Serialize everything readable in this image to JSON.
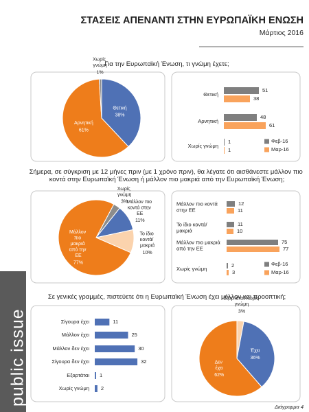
{
  "header": {
    "title": "ΣΤΑΣΕΙΣ ΑΠΕΝΑΝΤΙ ΣΤΗΝ ΕΥΡΩΠΑΪΚΗ ΕΝΩΣΗ",
    "date": "Μάρτιος 2016"
  },
  "brand": "public issue",
  "footer": "Διάγραμμα 4",
  "chart_data": [
    {
      "type": "pie",
      "title": "Για την Ευρωπαϊκή Ένωση, τι γνώμη έχετε;",
      "categories": [
        "Θετική",
        "Αρνητική",
        "Χωρίς γνώμη"
      ],
      "values": [
        38,
        61,
        1
      ],
      "value_labels": [
        "38%",
        "61%",
        "1%"
      ],
      "colors": [
        "#4f71b5",
        "#ee7d1b",
        "#8c8c8c"
      ]
    },
    {
      "type": "bar",
      "orientation": "horizontal",
      "categories": [
        "Θετική",
        "Αρνητική",
        "Χωρίς γνώμη"
      ],
      "series": [
        {
          "name": "Φεβ-16",
          "color": "#7f7f7f",
          "values": [
            51,
            48,
            1
          ]
        },
        {
          "name": "Μαρ-16",
          "color": "#f9a35c",
          "values": [
            38,
            61,
            1
          ]
        }
      ],
      "xlim": [
        0,
        100
      ],
      "legend": "lower right"
    },
    {
      "type": "pie",
      "title": "Σήμερα, σε σύγκριση με 12 μήνες πριν (με 1 χρόνο πριν), θα λέγατε ότι αισθάνεστε μάλλον πιο κοντά στην Ευρωπαϊκή Ένωση ή μάλλον πιο μακριά από την Ευρωπαϊκή Ένωση;",
      "categories": [
        "Χωρίς γνώμη",
        "Μάλλον πιο κοντά στην ΕΕ",
        "Το ίδιο κοντά/ μακριά",
        "Μάλλον πιο μακριά από την ΕΕ"
      ],
      "values": [
        3,
        11,
        10,
        77
      ],
      "value_labels": [
        "3%",
        "11%",
        "10%",
        "77%"
      ],
      "colors": [
        "#8c8c8c",
        "#4f71b5",
        "#fbd3ad",
        "#ee7d1b"
      ]
    },
    {
      "type": "bar",
      "orientation": "horizontal",
      "categories": [
        "Μάλλον πιο κοντά στην ΕΕ",
        "Το ίδιο κοντά/ μακριά",
        "Μάλλον πιο μακριά από την ΕΕ",
        "Χωρίς γνώμη"
      ],
      "series": [
        {
          "name": "Φεβ-16",
          "color": "#7f7f7f",
          "values": [
            12,
            11,
            75,
            2
          ]
        },
        {
          "name": "Μαρ-16",
          "color": "#f9a35c",
          "values": [
            11,
            10,
            77,
            3
          ]
        }
      ],
      "xlim": [
        0,
        100
      ],
      "legend": "lower right"
    },
    {
      "type": "bar",
      "orientation": "horizontal",
      "title": "Σε γενικές γραμμές, πιστεύετε ότι η Ευρωπαϊκή Ένωση έχει μέλλον και προοπτική;",
      "categories": [
        "Σίγουρα έχει",
        "Μάλλον έχει",
        "Μάλλον δεν έχει",
        "Σίγουρα δεν έχει",
        "Εξαρτάται",
        "Χωρίς γνώμη"
      ],
      "values": [
        11,
        25,
        30,
        32,
        1,
        2
      ],
      "color": "#4f71b5",
      "xlim": [
        0,
        50
      ]
    },
    {
      "type": "pie",
      "categories": [
        "Εξαρτάται/Χωρίς γνώμη",
        "Έχει",
        "Δεν έχει"
      ],
      "values": [
        3,
        36,
        62
      ],
      "value_labels": [
        "3%",
        "36%",
        "62%"
      ],
      "colors": [
        "#fbd3ad",
        "#4f71b5",
        "#ee7d1b"
      ]
    }
  ]
}
